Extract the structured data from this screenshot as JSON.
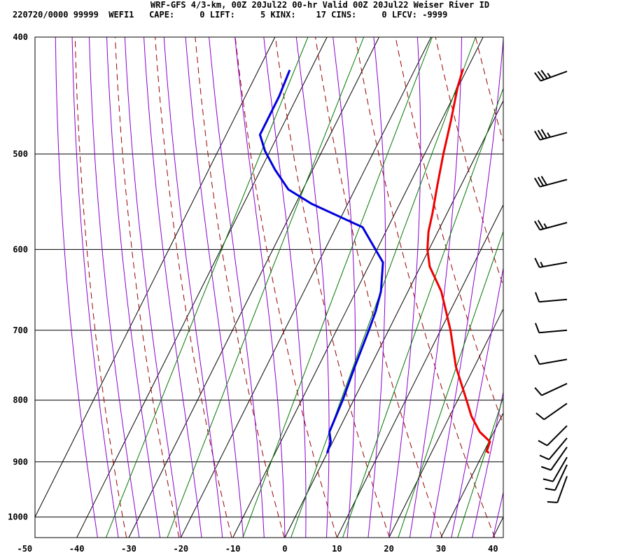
{
  "header": {
    "title": "WRF-GFS 4/3-km, 00Z 20Jul22 00-hr Valid 00Z 20Jul22 Weiser River ID",
    "info": "220720/0000 99999  WEFI1   CAPE:     0 LIFT:     5 KINX:    17 CINS:     0 LFCV: -9999"
  },
  "colors": {
    "temperature": "#ee0000",
    "dewpoint": "#0000dd",
    "dry_adiabat": "#990000",
    "moist_adiabat": "#8800cc",
    "mixing_ratio": "#007700",
    "grid": "#000000",
    "wind_barb": "#000000"
  },
  "chart_data": {
    "type": "skew-t",
    "title": "",
    "xlabel": "",
    "ylabel": "",
    "x_ticks": [
      -50,
      -40,
      -30,
      -20,
      -10,
      0,
      10,
      20,
      30,
      40
    ],
    "y_ticks": [
      400,
      500,
      600,
      700,
      800,
      900,
      1000
    ],
    "xlim": [
      -50,
      40
    ],
    "ylim": [
      1040,
      400
    ],
    "y_scale": "log",
    "grid": true,
    "series": [
      {
        "key": "temperature",
        "points": [
          {
            "p": 885,
            "t": 31.1
          },
          {
            "p": 882,
            "t": 30.5
          },
          {
            "p": 866,
            "t": 30.2
          },
          {
            "p": 850,
            "t": 27.3
          },
          {
            "p": 825,
            "t": 24.2
          },
          {
            "p": 800,
            "t": 21.7
          },
          {
            "p": 750,
            "t": 16.4
          },
          {
            "p": 700,
            "t": 11.9
          },
          {
            "p": 650,
            "t": 6.4
          },
          {
            "p": 620,
            "t": 1.8
          },
          {
            "p": 600,
            "t": -0.3
          },
          {
            "p": 580,
            "t": -1.8
          },
          {
            "p": 560,
            "t": -2.8
          },
          {
            "p": 530,
            "t": -4.6
          },
          {
            "p": 500,
            "t": -6.4
          },
          {
            "p": 470,
            "t": -8.1
          },
          {
            "p": 440,
            "t": -10.1
          },
          {
            "p": 425,
            "t": -10.8
          }
        ]
      },
      {
        "key": "dewpoint",
        "points": [
          {
            "p": 885,
            "t": 0.0
          },
          {
            "p": 866,
            "t": -0.4
          },
          {
            "p": 850,
            "t": -1.6
          },
          {
            "p": 800,
            "t": -2.1
          },
          {
            "p": 750,
            "t": -3.0
          },
          {
            "p": 700,
            "t": -3.8
          },
          {
            "p": 675,
            "t": -4.3
          },
          {
            "p": 650,
            "t": -5.2
          },
          {
            "p": 615,
            "t": -7.6
          },
          {
            "p": 575,
            "t": -14.9
          },
          {
            "p": 550,
            "t": -26.9
          },
          {
            "p": 535,
            "t": -32.8
          },
          {
            "p": 515,
            "t": -37.3
          },
          {
            "p": 497,
            "t": -41.0
          },
          {
            "p": 482,
            "t": -43.5
          },
          {
            "p": 470,
            "t": -43.5
          },
          {
            "p": 448,
            "t": -43.5
          },
          {
            "p": 426,
            "t": -44.0
          }
        ]
      }
    ],
    "wind_barbs": [
      {
        "p": 427,
        "dir": 250,
        "spd": 35
      },
      {
        "p": 480,
        "dir": 255,
        "spd": 35
      },
      {
        "p": 525,
        "dir": 255,
        "spd": 30
      },
      {
        "p": 570,
        "dir": 255,
        "spd": 25
      },
      {
        "p": 615,
        "dir": 260,
        "spd": 15
      },
      {
        "p": 660,
        "dir": 265,
        "spd": 10
      },
      {
        "p": 700,
        "dir": 265,
        "spd": 10
      },
      {
        "p": 740,
        "dir": 260,
        "spd": 10
      },
      {
        "p": 775,
        "dir": 245,
        "spd": 10
      },
      {
        "p": 805,
        "dir": 235,
        "spd": 10
      },
      {
        "p": 840,
        "dir": 225,
        "spd": 10
      },
      {
        "p": 860,
        "dir": 220,
        "spd": 10
      },
      {
        "p": 875,
        "dir": 215,
        "spd": 10
      },
      {
        "p": 892,
        "dir": 210,
        "spd": 10
      },
      {
        "p": 905,
        "dir": 205,
        "spd": 10
      },
      {
        "p": 925,
        "dir": 200,
        "spd": 10
      }
    ]
  }
}
